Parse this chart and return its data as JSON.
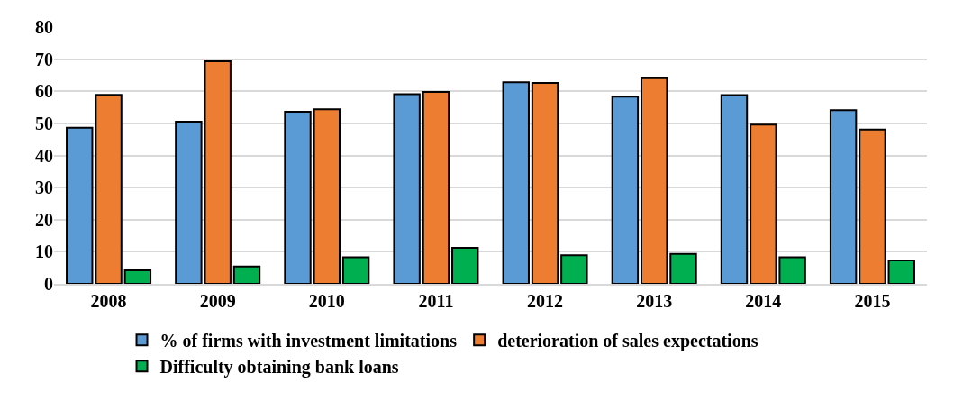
{
  "chart_data": {
    "type": "bar",
    "categories": [
      "2008",
      "2009",
      "2010",
      "2011",
      "2012",
      "2013",
      "2014",
      "2015"
    ],
    "series": [
      {
        "name": "% of firms with investment limitations",
        "color": "#5b9bd5",
        "values": [
          48.6,
          50.5,
          53.6,
          59.1,
          62.8,
          58.3,
          58.8,
          54.1
        ]
      },
      {
        "name": "deterioration of sales expectations",
        "color": "#ed7d31",
        "values": [
          58.9,
          69.3,
          54.4,
          59.8,
          62.6,
          64.1,
          49.6,
          48.1
        ]
      },
      {
        "name": "Difficulty obtaining bank loans",
        "color": "#00b050",
        "values": [
          4.2,
          5.4,
          8.3,
          11.2,
          8.9,
          9.3,
          8.3,
          7.3
        ]
      }
    ],
    "ylim": [
      0,
      80
    ],
    "yticks": [
      0,
      10,
      20,
      30,
      40,
      50,
      60,
      70,
      80
    ],
    "grid": "y",
    "legend": "bottom"
  }
}
